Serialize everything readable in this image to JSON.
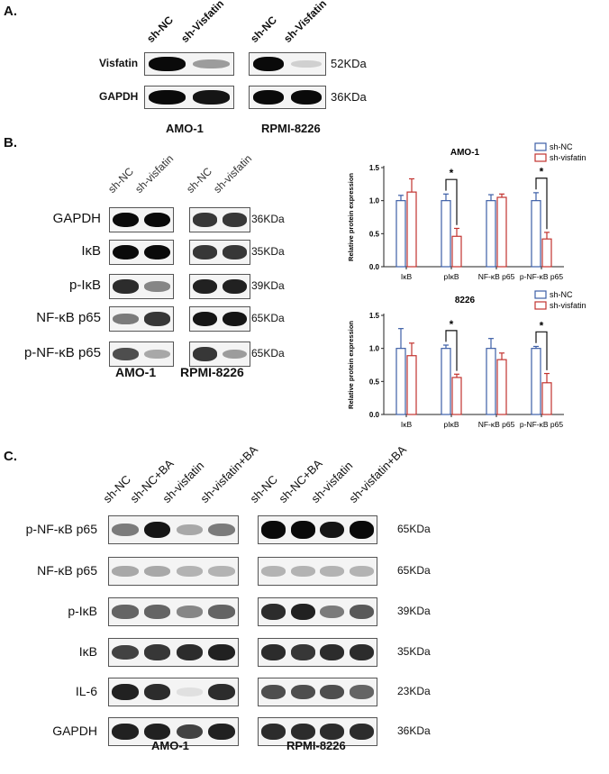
{
  "panelA": {
    "label": "A.",
    "amo_lanes": [
      "sh-NC",
      "sh-Visfatin"
    ],
    "rpmi_lanes": [
      "sh-NC",
      "sh-Visfatin"
    ],
    "rows": [
      {
        "name": "Visfatin",
        "kda": "52KDa",
        "amo": [
          1.0,
          0.35
        ],
        "rpmi": [
          1.0,
          0.12
        ]
      },
      {
        "name": "GAPDH",
        "kda": "36KDa",
        "amo": [
          1.0,
          0.95
        ],
        "rpmi": [
          1.0,
          1.0
        ]
      }
    ],
    "cell_lines": [
      "AMO-1",
      "RPMI-8226"
    ]
  },
  "panelB": {
    "label": "B.",
    "amo_lanes": [
      "sh-NC",
      "sh-visfatin"
    ],
    "rpmi_lanes": [
      "sh-NC",
      "sh-visfatin"
    ],
    "rows": [
      {
        "name": "GAPDH",
        "kda": "36KDa",
        "amo": [
          1.0,
          1.0
        ],
        "rpmi": [
          0.8,
          0.8
        ]
      },
      {
        "name": "IκB",
        "kda": "35KDa",
        "amo": [
          1.0,
          1.0
        ],
        "rpmi": [
          0.8,
          0.8
        ]
      },
      {
        "name": "p-IκB",
        "kda": "39KDa",
        "amo": [
          0.85,
          0.45
        ],
        "rpmi": [
          0.9,
          0.9
        ]
      },
      {
        "name": "NF-κB p65",
        "kda": "65KDa",
        "amo": [
          0.5,
          0.8
        ],
        "rpmi": [
          0.95,
          0.95
        ]
      },
      {
        "name": "p-NF-κB p65",
        "kda": "65KDa",
        "amo": [
          0.7,
          0.3
        ],
        "rpmi": [
          0.8,
          0.35
        ]
      }
    ],
    "cell_lines": [
      "AMO-1",
      "RPMI-8226"
    ]
  },
  "chart_data": [
    {
      "type": "bar",
      "title": "AMO-1",
      "ylabel": "Relative protein expression",
      "ylim": [
        0,
        1.5
      ],
      "yticks": [
        "0.0",
        "0.5",
        "1.0",
        "1.5"
      ],
      "categories": [
        "IκB",
        "pIκB",
        "NF-κB p65",
        "p-NF-κB p65"
      ],
      "series": [
        {
          "name": "sh-NC",
          "values": [
            1.0,
            1.0,
            1.0,
            1.0
          ],
          "errors": [
            0.08,
            0.1,
            0.09,
            0.12
          ],
          "color": "#3d5fa6"
        },
        {
          "name": "sh-visfatin",
          "values": [
            1.13,
            0.46,
            1.05,
            0.42
          ],
          "errors": [
            0.2,
            0.12,
            0.05,
            0.1
          ],
          "color": "#c2332f"
        }
      ],
      "significance": [
        {
          "category": 1,
          "mark": "*"
        },
        {
          "category": 3,
          "mark": "*"
        }
      ],
      "legend": "top-right"
    },
    {
      "type": "bar",
      "title": "8226",
      "ylabel": "Relative protein expression",
      "ylim": [
        0,
        1.5
      ],
      "yticks": [
        "0.0",
        "0.5",
        "1.0",
        "1.5"
      ],
      "categories": [
        "IκB",
        "pIκB",
        "NF-κB p65",
        "p-NF-κB p65"
      ],
      "series": [
        {
          "name": "sh-NC",
          "values": [
            1.0,
            1.0,
            1.0,
            1.0
          ],
          "errors": [
            0.3,
            0.05,
            0.15,
            0.03
          ],
          "color": "#3d5fa6"
        },
        {
          "name": "sh-visfatin",
          "values": [
            0.89,
            0.56,
            0.83,
            0.48
          ],
          "errors": [
            0.19,
            0.05,
            0.1,
            0.14
          ],
          "color": "#c2332f"
        }
      ],
      "significance": [
        {
          "category": 1,
          "mark": "*"
        },
        {
          "category": 3,
          "mark": "*"
        }
      ],
      "legend": "top-right"
    }
  ],
  "panelC": {
    "label": "C.",
    "amo_lanes": [
      "sh-NC",
      "sh-NC+BA",
      "sh-visfatin",
      "sh-visfatin+BA"
    ],
    "rpmi_lanes": [
      "sh-NC",
      "sh-NC+BA",
      "sh-visfatin",
      "sh-visfatin+BA"
    ],
    "rows": [
      {
        "name": "p-NF-κB p65",
        "kda": "65KDa",
        "amo": [
          0.5,
          0.95,
          0.3,
          0.5
        ],
        "rpmi": [
          1.0,
          1.0,
          0.95,
          1.0
        ]
      },
      {
        "name": "NF-κB p65",
        "kda": "65KDa",
        "amo": [
          0.3,
          0.3,
          0.25,
          0.25
        ],
        "rpmi": [
          0.25,
          0.25,
          0.25,
          0.25
        ]
      },
      {
        "name": "p-IκB",
        "kda": "39KDa",
        "amo": [
          0.6,
          0.6,
          0.45,
          0.6
        ],
        "rpmi": [
          0.85,
          0.9,
          0.5,
          0.65
        ]
      },
      {
        "name": "IκB",
        "kda": "35KDa",
        "amo": [
          0.75,
          0.8,
          0.85,
          0.9
        ],
        "rpmi": [
          0.85,
          0.8,
          0.85,
          0.85
        ]
      },
      {
        "name": "IL-6",
        "kda": "23KDa",
        "amo": [
          0.9,
          0.85,
          0.05,
          0.85
        ],
        "rpmi": [
          0.7,
          0.7,
          0.7,
          0.6
        ]
      },
      {
        "name": "GAPDH",
        "kda": "36KDa",
        "amo": [
          0.9,
          0.9,
          0.75,
          0.9
        ],
        "rpmi": [
          0.85,
          0.85,
          0.85,
          0.85
        ]
      }
    ],
    "cell_lines": [
      "AMO-1",
      "RPMI-8226"
    ]
  }
}
